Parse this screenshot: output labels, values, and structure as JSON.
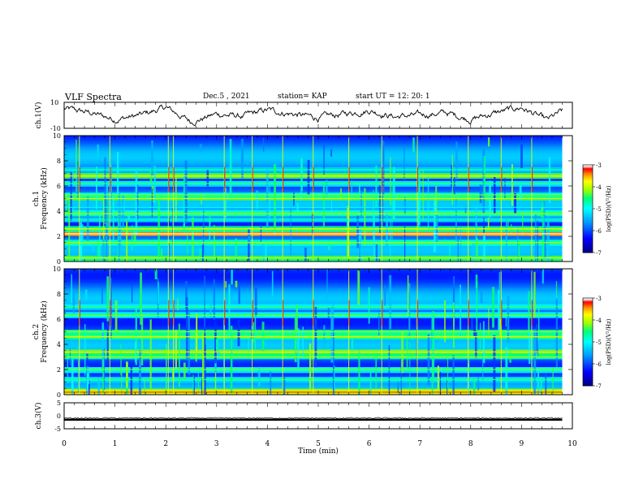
{
  "header": {
    "title": "VLF Spectra",
    "date": "Dec.5 , 2021",
    "station": "station= KAP",
    "start": "start UT = 12: 20: 1"
  },
  "chart_data": [
    {
      "id": "ch1-waveform",
      "type": "line",
      "ylabel": "ch.1(V)",
      "ylim": [
        -10,
        10
      ],
      "y_ticks": [
        "10",
        "-10"
      ],
      "xlim": [
        0,
        10
      ],
      "description_values": {
        "x_min": [
          0,
          0.5,
          1,
          1.5,
          2,
          2.5,
          3,
          3.5,
          4,
          4.5,
          5,
          5.5,
          6,
          6.5,
          7,
          7.5,
          8,
          8.5,
          9,
          9.5,
          9.8
        ],
        "y_V": [
          5,
          2,
          -3,
          0,
          6,
          -5,
          1,
          -1,
          4,
          1,
          -2,
          1,
          4,
          -1,
          0,
          2,
          -3,
          2,
          6,
          -4,
          3
        ]
      }
    },
    {
      "id": "ch1-spectrogram",
      "type": "heatmap",
      "ylabel_line1": "ch.1",
      "ylabel_line2": "Frequency (kHz)",
      "xlim": [
        0,
        9.8
      ],
      "ylim": [
        0,
        10
      ],
      "y_ticks": [
        "0",
        "2",
        "4",
        "6",
        "8",
        "10"
      ],
      "colorbar": {
        "label": "log(PSD)(V²/Hz)",
        "range": [
          -7,
          -3
        ],
        "ticks": [
          "-3",
          "-4",
          "-5",
          "-6",
          "-7"
        ]
      },
      "bands_kHz": [
        {
          "f": 0.3,
          "level": 0.55
        },
        {
          "f": 1.5,
          "level": 0.5
        },
        {
          "f": 2.2,
          "level": 0.8
        },
        {
          "f": 2.6,
          "level": 0.55
        },
        {
          "f": 3.3,
          "level": 0.35
        },
        {
          "f": 3.8,
          "level": 0.5
        },
        {
          "f": 4.3,
          "level": 0.25
        },
        {
          "f": 5.0,
          "level": 0.55
        },
        {
          "f": 5.3,
          "level": 0.45
        },
        {
          "f": 6.2,
          "level": 0.4
        },
        {
          "f": 6.8,
          "level": 0.6
        },
        {
          "f": 7.3,
          "level": 0.35
        }
      ],
      "sferics_min": [
        0.3,
        0.9,
        2.05,
        2.15,
        3.15,
        3.7,
        4.3,
        4.9,
        5.6,
        6.25,
        6.95,
        7.95,
        8.6,
        9.2
      ]
    },
    {
      "id": "ch2-spectrogram",
      "type": "heatmap",
      "ylabel_line1": "ch.2",
      "ylabel_line2": "Frequency (kHz)",
      "xlim": [
        0,
        9.8
      ],
      "ylim": [
        0,
        10
      ],
      "y_ticks": [
        "0",
        "2",
        "4",
        "6",
        "8",
        "10"
      ],
      "colorbar": {
        "label": "log(PSD)(V²/Hz)",
        "range": [
          -7,
          -3
        ],
        "ticks": [
          "-3",
          "-4",
          "-5",
          "-6",
          "-7"
        ]
      },
      "bands_kHz": [
        {
          "f": 0.2,
          "level": 0.7
        },
        {
          "f": 1.2,
          "level": 0.4
        },
        {
          "f": 2.0,
          "level": 0.45
        },
        {
          "f": 3.0,
          "level": 0.5
        },
        {
          "f": 3.4,
          "level": 0.6
        },
        {
          "f": 4.6,
          "level": 0.55
        },
        {
          "f": 5.0,
          "level": 0.5
        },
        {
          "f": 6.3,
          "level": 0.45
        },
        {
          "f": 7.0,
          "level": 0.4
        }
      ],
      "sferics_min": [
        0.3,
        0.9,
        2.05,
        2.15,
        3.15,
        3.7,
        4.3,
        4.9,
        5.6,
        6.25,
        6.95,
        7.95,
        8.6,
        9.2
      ]
    },
    {
      "id": "ch3-waveform",
      "type": "line",
      "ylabel": "ch.3(V)",
      "ylim": [
        -5,
        5
      ],
      "y_ticks": [
        "5",
        "0",
        "-5"
      ],
      "xlim": [
        0,
        10
      ],
      "xlabel": "Time (min)",
      "x_ticks": [
        "0",
        "1",
        "2",
        "3",
        "4",
        "5",
        "6",
        "7",
        "8",
        "9",
        "10"
      ],
      "signal_center_V": -1.5,
      "signal_amplitude_V": 0.4
    }
  ],
  "colors": {
    "axis": "#000000",
    "colormap": [
      "#00008b",
      "#0000ff",
      "#0096ff",
      "#00ffff",
      "#00ff64",
      "#b4ff00",
      "#ffff00",
      "#ff9600",
      "#ff0000",
      "#ffffff"
    ]
  }
}
